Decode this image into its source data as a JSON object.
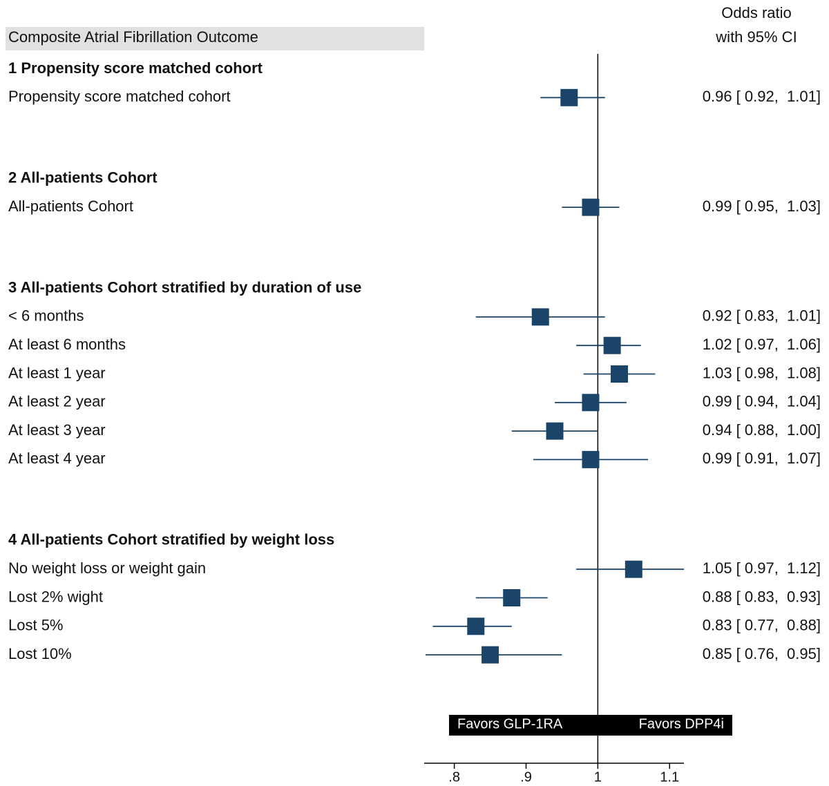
{
  "chart_data": {
    "type": "forest",
    "title": "Composite Atrial Fibrillation Outcome",
    "estimate_header": [
      "Odds ratio",
      "with 95% CI"
    ],
    "color": "#1b4469",
    "reference": 1,
    "left_label": "Favors GLP-1RA",
    "right_label": "Favors DPP4i",
    "xlim": [
      0.758,
      1.12
    ],
    "xticks": [
      {
        "value": 0.8,
        "label": ".8"
      },
      {
        "value": 0.9,
        "label": ".9"
      },
      1,
      1.1
    ],
    "groups": [
      {
        "name": "1 Propensity score matched cohort",
        "categories": [
          "Propensity score matched cohort"
        ],
        "values": [
          0.96
        ],
        "lower": [
          0.92
        ],
        "upper": [
          1.01
        ],
        "value_labels": [
          "0.96 [ 0.92,  1.01]"
        ]
      },
      {
        "name": "2 All-patients Cohort",
        "categories": [
          "All-patients Cohort"
        ],
        "values": [
          0.99
        ],
        "lower": [
          0.95
        ],
        "upper": [
          1.03
        ],
        "value_labels": [
          "0.99 [ 0.95,  1.03]"
        ]
      },
      {
        "name": "3 All-patients Cohort stratified by duration of use",
        "categories": [
          "< 6 months",
          "At least 6 months",
          "At least 1 year",
          "At least 2 year",
          "At least 3 year",
          "At least 4 year"
        ],
        "values": [
          0.92,
          1.02,
          1.03,
          0.99,
          0.94,
          0.99
        ],
        "lower": [
          0.83,
          0.97,
          0.98,
          0.94,
          0.88,
          0.91
        ],
        "upper": [
          1.01,
          1.06,
          1.08,
          1.04,
          1.0,
          1.07
        ],
        "value_labels": [
          "0.92 [ 0.83,  1.01]",
          "1.02 [ 0.97,  1.06]",
          "1.03 [ 0.98,  1.08]",
          "0.99 [ 0.94,  1.04]",
          "0.94 [ 0.88,  1.00]",
          "0.99 [ 0.91,  1.07]"
        ]
      },
      {
        "name": "4 All-patients Cohort stratified by weight loss",
        "categories": [
          "No weight loss or weight gain",
          "Lost 2% wight",
          "Lost 5%",
          "Lost 10%"
        ],
        "values": [
          1.05,
          0.88,
          0.83,
          0.85
        ],
        "lower": [
          0.97,
          0.83,
          0.77,
          0.76
        ],
        "upper": [
          1.12,
          0.93,
          0.88,
          0.95
        ],
        "value_labels": [
          "1.05 [ 0.97,  1.12]",
          "0.88 [ 0.83,  0.93]",
          "0.83 [ 0.77,  0.88]",
          "0.85 [ 0.76,  0.95]"
        ]
      }
    ]
  }
}
